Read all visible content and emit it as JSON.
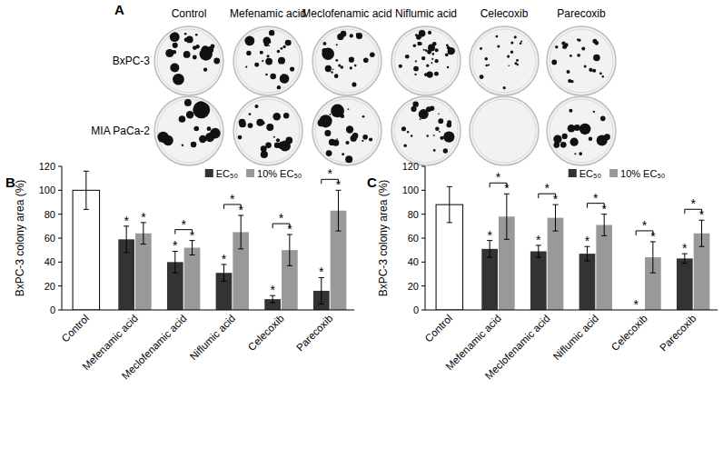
{
  "panel_a": {
    "label": "A",
    "columns": [
      "Control",
      "Mefenamic acid",
      "Meclofenamic acid",
      "Niflumic acid",
      "Celecoxib",
      "Parecoxib"
    ],
    "rows": [
      "BxPC-3",
      "MIA PaCa-2"
    ]
  },
  "chart_data": [
    {
      "type": "bar",
      "panel_label": "B",
      "y_label": "BxPC-3 colony area (%)",
      "categories": [
        "Control",
        "Mefenamic acid",
        "Meclofenamic acid",
        "Niflumic acid",
        "Celecoxib",
        "Parecoxib"
      ],
      "ylim": [
        0,
        120
      ],
      "yticks": [
        0,
        20,
        40,
        60,
        80,
        100,
        120
      ],
      "legend": "top-right",
      "significance_mark": "*",
      "control": {
        "value": 100,
        "error": 16,
        "color": "#ffffff"
      },
      "series": [
        {
          "name": "EC₅₀",
          "color": "#333333",
          "values": [
            null,
            59,
            40,
            31,
            9,
            16
          ],
          "errors": [
            null,
            11,
            9,
            7,
            3,
            11
          ],
          "significant": [
            false,
            true,
            true,
            true,
            true,
            true
          ]
        },
        {
          "name": "10% EC₅₀",
          "color": "#999999",
          "values": [
            null,
            64,
            52,
            65,
            50,
            83
          ],
          "errors": [
            null,
            9,
            6,
            14,
            13,
            17
          ],
          "significant": [
            false,
            true,
            true,
            true,
            true,
            true
          ]
        }
      ],
      "pair_significant": [
        false,
        false,
        true,
        true,
        true,
        true
      ]
    },
    {
      "type": "bar",
      "panel_label": "C",
      "y_label": "BxPC-3 colony area (%)",
      "categories": [
        "Control",
        "Mefenamic acid",
        "Meclofenamic acid",
        "Niflumic acid",
        "Celecoxib",
        "Parecoxib"
      ],
      "ylim": [
        0,
        120
      ],
      "yticks": [
        0,
        20,
        40,
        60,
        80,
        100,
        120
      ],
      "legend": "top-right",
      "significance_mark": "*",
      "control": {
        "value": 88,
        "error": 15,
        "color": "#ffffff"
      },
      "series": [
        {
          "name": "EC₅₀",
          "color": "#333333",
          "values": [
            null,
            51,
            49,
            47,
            0,
            43
          ],
          "errors": [
            null,
            7,
            5,
            6,
            null,
            4
          ],
          "significant": [
            false,
            true,
            true,
            true,
            true,
            true
          ]
        },
        {
          "name": "10% EC₅₀",
          "color": "#999999",
          "values": [
            null,
            78,
            77,
            71,
            44,
            64
          ],
          "errors": [
            null,
            19,
            11,
            9,
            13,
            11
          ],
          "significant": [
            false,
            true,
            true,
            true,
            true,
            true
          ]
        }
      ],
      "pair_significant": [
        false,
        true,
        true,
        true,
        true,
        true
      ]
    }
  ]
}
